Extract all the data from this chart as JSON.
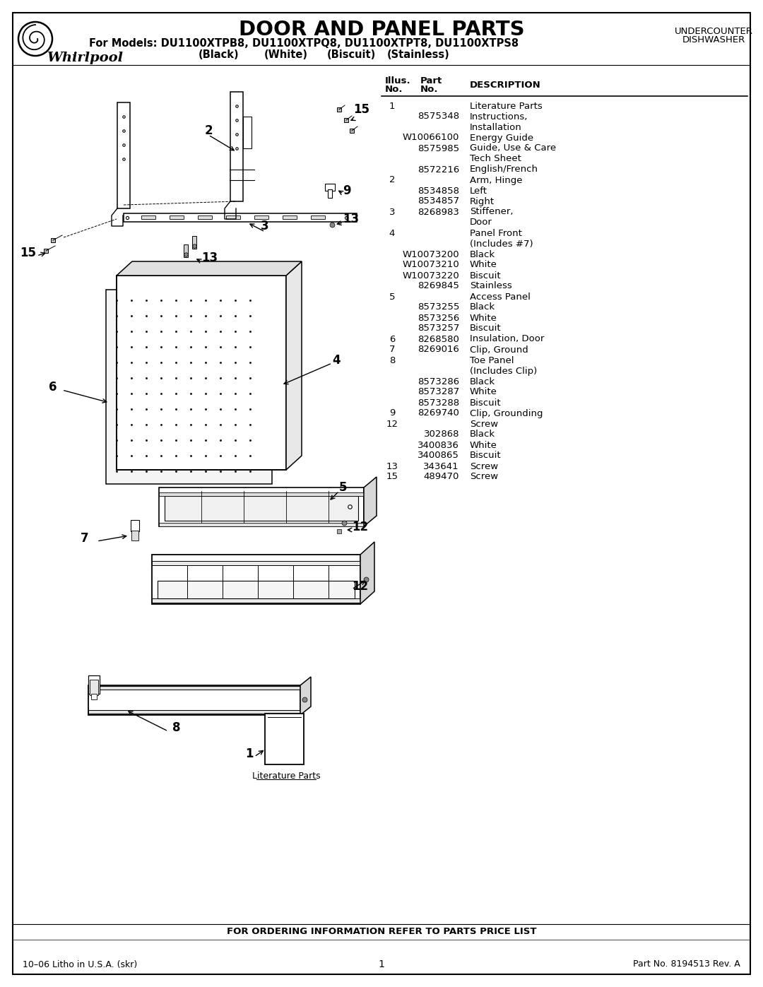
{
  "title": "DOOR AND PANEL PARTS",
  "subtitle_line1": "For Models: DU1100XTPB8, DU1100XTPQ8, DU1100XTPT8, DU1100XTPS8",
  "subtitle_line2": "(Black)          (White)         (Biscuit)      (Stainless)",
  "top_right_line1": "UNDERCOUNTER",
  "top_right_line2": "DISHWASHER",
  "parts": [
    [
      "1",
      "",
      "Literature Parts"
    ],
    [
      "",
      "8575348",
      "Instructions,"
    ],
    [
      "",
      "",
      "Installation"
    ],
    [
      "",
      "W10066100",
      "Energy Guide"
    ],
    [
      "",
      "8575985",
      "Guide, Use & Care"
    ],
    [
      "",
      "",
      "Tech Sheet"
    ],
    [
      "",
      "8572216",
      "English/French"
    ],
    [
      "2",
      "",
      "Arm, Hinge"
    ],
    [
      "",
      "8534858",
      "Left"
    ],
    [
      "",
      "8534857",
      "Right"
    ],
    [
      "3",
      "8268983",
      "Stiffener,"
    ],
    [
      "",
      "",
      "Door"
    ],
    [
      "4",
      "",
      "Panel Front"
    ],
    [
      "",
      "",
      "(Includes #7)"
    ],
    [
      "",
      "W10073200",
      "Black"
    ],
    [
      "",
      "W10073210",
      "White"
    ],
    [
      "",
      "W10073220",
      "Biscuit"
    ],
    [
      "",
      "8269845",
      "Stainless"
    ],
    [
      "5",
      "",
      "Access Panel"
    ],
    [
      "",
      "8573255",
      "Black"
    ],
    [
      "",
      "8573256",
      "White"
    ],
    [
      "",
      "8573257",
      "Biscuit"
    ],
    [
      "6",
      "8268580",
      "Insulation, Door"
    ],
    [
      "7",
      "8269016",
      "Clip, Ground"
    ],
    [
      "8",
      "",
      "Toe Panel"
    ],
    [
      "",
      "",
      "(Includes Clip)"
    ],
    [
      "",
      "8573286",
      "Black"
    ],
    [
      "",
      "8573287",
      "White"
    ],
    [
      "",
      "8573288",
      "Biscuit"
    ],
    [
      "9",
      "8269740",
      "Clip, Grounding"
    ],
    [
      "12",
      "",
      "Screw"
    ],
    [
      "",
      "302868",
      "Black"
    ],
    [
      "",
      "3400836",
      "White"
    ],
    [
      "",
      "3400865",
      "Biscuit"
    ],
    [
      "13",
      "343641",
      "Screw"
    ],
    [
      "15",
      "489470",
      "Screw"
    ]
  ],
  "footer_center": "FOR ORDERING INFORMATION REFER TO PARTS PRICE LIST",
  "footer_left": "10–06 Litho in U.S.A. (skr)",
  "footer_mid": "1",
  "footer_right": "Part No. 8194513 Rev. A",
  "literature_parts_label": "Literature Parts"
}
